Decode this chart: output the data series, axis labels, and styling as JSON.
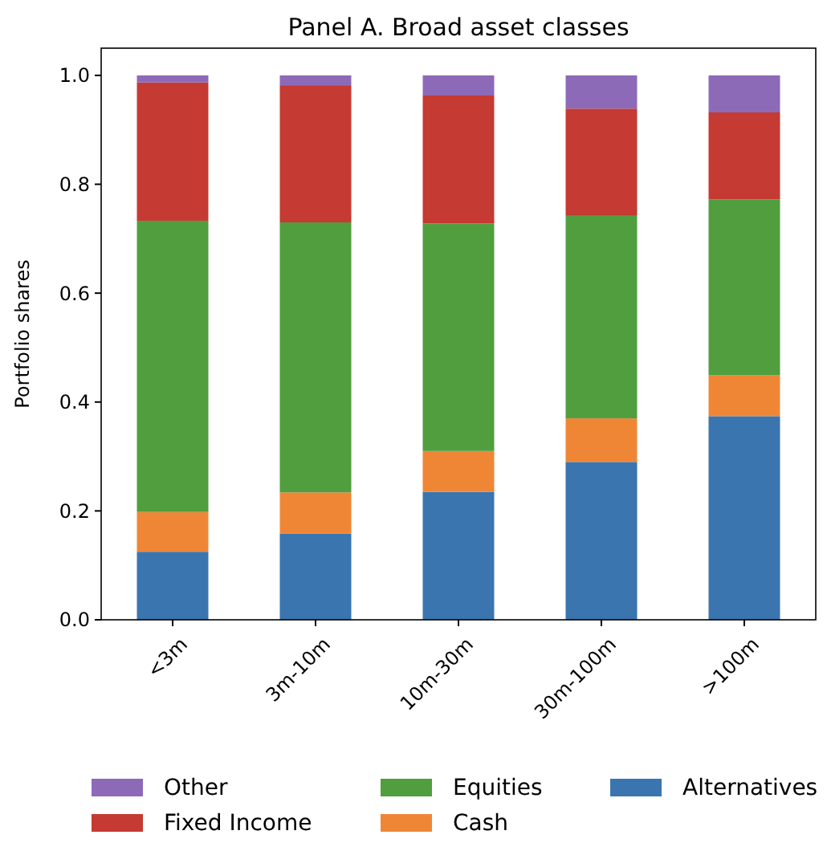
{
  "chart_data": {
    "type": "bar",
    "title": "Panel A. Broad asset classes",
    "ylabel": "Portfolio shares",
    "stacked": true,
    "categories": [
      "<3m",
      "3m-10m",
      "10m-30m",
      "30m-100m",
      ">100m"
    ],
    "series": [
      {
        "name": "Alternatives",
        "color": "#3a75af",
        "values": [
          0.125,
          0.158,
          0.235,
          0.29,
          0.374
        ]
      },
      {
        "name": "Cash",
        "color": "#ef8636",
        "values": [
          0.073,
          0.076,
          0.075,
          0.08,
          0.075
        ]
      },
      {
        "name": "Equities",
        "color": "#519e3e",
        "values": [
          0.535,
          0.496,
          0.418,
          0.372,
          0.323
        ]
      },
      {
        "name": "Fixed Income",
        "color": "#c53a32",
        "values": [
          0.254,
          0.252,
          0.235,
          0.197,
          0.16
        ]
      },
      {
        "name": "Other",
        "color": "#8d6ab8",
        "values": [
          0.013,
          0.018,
          0.037,
          0.061,
          0.068
        ]
      }
    ],
    "ylim": [
      0,
      1.05
    ],
    "yticks": [
      {
        "value": 0,
        "label": "0.0"
      },
      {
        "value": 0.2,
        "label": "0.2"
      },
      {
        "value": 0.4,
        "label": "0.4"
      },
      {
        "value": 0.6,
        "label": "0.6"
      },
      {
        "value": 0.8,
        "label": "0.8"
      },
      {
        "value": 1,
        "label": "1.0"
      }
    ],
    "grid": false,
    "legend": "bottom"
  }
}
